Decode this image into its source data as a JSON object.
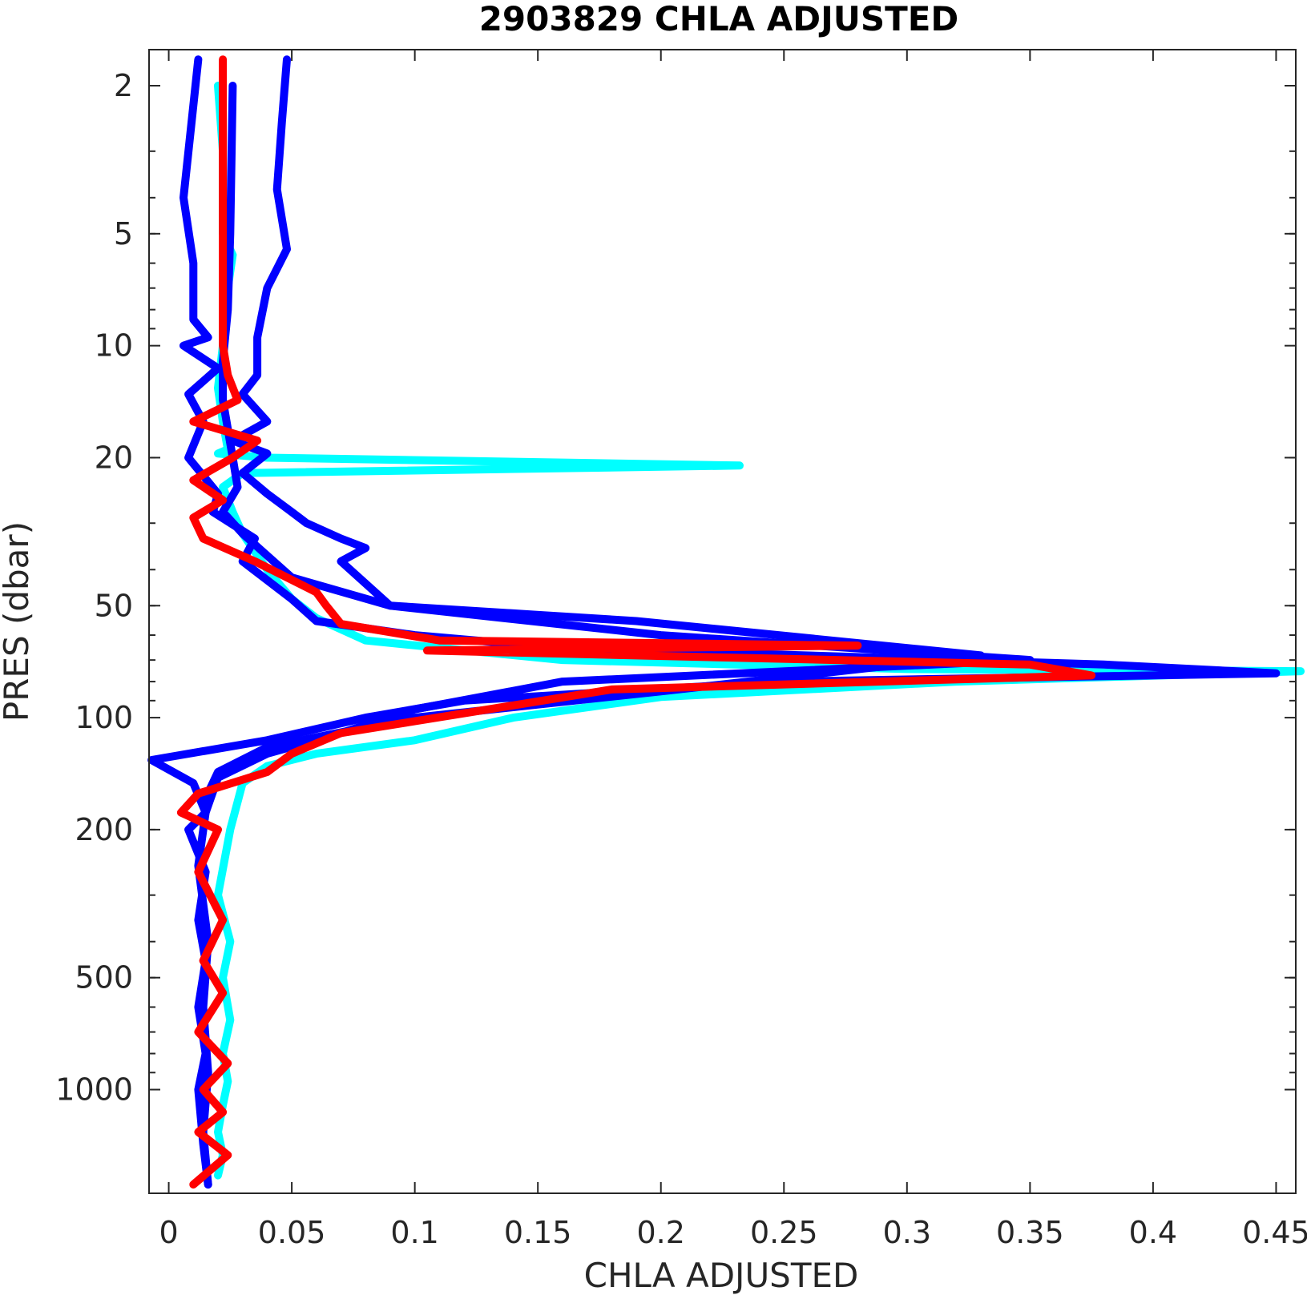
{
  "chart_data": {
    "type": "line",
    "title": "2903829  CHLA ADJUSTED",
    "xlabel": "CHLA ADJUSTED",
    "ylabel": "PRES (dbar)",
    "xlim": [
      -0.008,
      0.458
    ],
    "ylim": [
      1.6,
      1900
    ],
    "yscale": "log",
    "y_reversed": true,
    "grid": false,
    "xticks": [
      0,
      0.05,
      0.1,
      0.15,
      0.2,
      0.25,
      0.3,
      0.35,
      0.4,
      0.45
    ],
    "xtick_labels": [
      "0",
      "0.05",
      "0.1",
      "0.15",
      "0.2",
      "0.25",
      "0.3",
      "0.35",
      "0.4",
      "0.45"
    ],
    "yticks": [
      2,
      5,
      10,
      20,
      50,
      100,
      200,
      500,
      1000
    ],
    "ytick_labels": [
      "2",
      "5",
      "10",
      "20",
      "50",
      "100",
      "200",
      "500",
      "1000"
    ],
    "colors": {
      "cyan": "#00ffff",
      "blue": "#0000ff",
      "red": "#ff0000"
    },
    "series": [
      {
        "color": "#00ffff",
        "x": [
          0.02,
          0.022,
          0.022,
          0.026,
          0.024,
          0.022,
          0.02,
          0.022,
          0.024,
          0.02,
          0.04,
          0.232,
          0.03,
          0.022,
          0.026,
          0.03,
          0.04,
          0.05,
          0.06,
          0.08,
          0.16,
          0.3,
          0.46,
          0.32,
          0.2,
          0.14,
          0.1,
          0.06,
          0.04,
          0.03,
          0.025,
          0.02,
          0.025,
          0.022,
          0.025,
          0.022,
          0.024,
          0.022,
          0.02,
          0.022,
          0.02
        ],
        "y": [
          2,
          3,
          5,
          5.7,
          7,
          10,
          13,
          16,
          19,
          19.5,
          20,
          21,
          22,
          24,
          28,
          32,
          40,
          48,
          54,
          62,
          70,
          74,
          75,
          80,
          88,
          100,
          115,
          125,
          135,
          150,
          200,
          300,
          400,
          500,
          650,
          800,
          950,
          1100,
          1300,
          1500,
          1700
        ]
      },
      {
        "color": "#0000ff",
        "x": [
          0.012,
          0.006,
          0.01,
          0.01,
          0.016,
          0.006,
          0.02,
          0.008,
          0.014,
          0.008,
          0.02,
          0.018,
          0.035,
          0.03,
          0.05,
          0.06,
          0.1,
          0.16,
          0.38,
          0.45,
          0.25,
          0.12,
          0.08,
          0.04,
          -0.007,
          0.01,
          0.015,
          0.008,
          0.015,
          0.012,
          0.015,
          0.012,
          0.015,
          0.012,
          0.014,
          0.016
        ],
        "y": [
          1.7,
          4,
          6,
          8.5,
          9.5,
          10,
          11.5,
          13.5,
          16,
          20,
          25,
          28,
          33,
          38,
          48,
          55,
          60,
          65,
          72,
          76,
          80,
          90,
          100,
          115,
          130,
          150,
          180,
          200,
          260,
          350,
          450,
          600,
          800,
          1000,
          1400,
          1800
        ]
      },
      {
        "color": "#0000ff",
        "x": [
          0.048,
          0.046,
          0.044,
          0.048,
          0.04,
          0.036,
          0.036,
          0.03,
          0.04,
          0.026,
          0.04,
          0.03,
          0.04,
          0.05,
          0.056,
          0.07,
          0.08,
          0.07,
          0.09,
          0.2,
          0.35,
          0.16,
          0.1,
          0.07,
          0.04,
          0.02,
          0.015,
          0.012,
          0.016,
          0.014,
          0.016,
          0.014,
          0.016
        ],
        "y": [
          1.7,
          2.5,
          3.8,
          5.5,
          7,
          9.5,
          12,
          13.5,
          16,
          18,
          19.5,
          22,
          25,
          28,
          30,
          33,
          35,
          38,
          50,
          60,
          70,
          80,
          95,
          110,
          125,
          145,
          180,
          250,
          400,
          600,
          900,
          1300,
          1800
        ]
      },
      {
        "color": "#0000ff",
        "x": [
          0.026,
          0.025,
          0.024,
          0.022,
          0.022,
          0.026,
          0.028,
          0.022,
          0.03,
          0.05,
          0.09,
          0.19,
          0.33,
          0.2,
          0.1,
          0.04,
          0.02,
          0.014
        ],
        "y": [
          2,
          5,
          8,
          11,
          14,
          20,
          24,
          28,
          32,
          42,
          50,
          55,
          68,
          85,
          100,
          120,
          140,
          170
        ]
      },
      {
        "color": "#ff0000",
        "x": [
          0.022,
          0.022,
          0.022,
          0.022,
          0.024,
          0.028,
          0.01,
          0.036,
          0.026,
          0.01,
          0.022,
          0.01,
          0.014,
          0.035,
          0.06,
          0.064,
          0.07,
          0.11,
          0.28,
          0.105,
          0.35,
          0.375,
          0.18,
          0.13,
          0.07,
          0.05,
          0.04,
          0.012,
          0.005,
          0.02,
          0.012,
          0.022,
          0.014,
          0.022,
          0.012,
          0.024,
          0.014,
          0.022,
          0.012,
          0.024,
          0.01
        ],
        "y": [
          1.7,
          3,
          6,
          10,
          12,
          14,
          16,
          18,
          20,
          23,
          26,
          29,
          33,
          38,
          46,
          50,
          56,
          62,
          64,
          66,
          72,
          77,
          84,
          95,
          110,
          125,
          140,
          160,
          180,
          200,
          260,
          350,
          450,
          550,
          700,
          850,
          1000,
          1150,
          1300,
          1500,
          1800
        ]
      }
    ]
  }
}
